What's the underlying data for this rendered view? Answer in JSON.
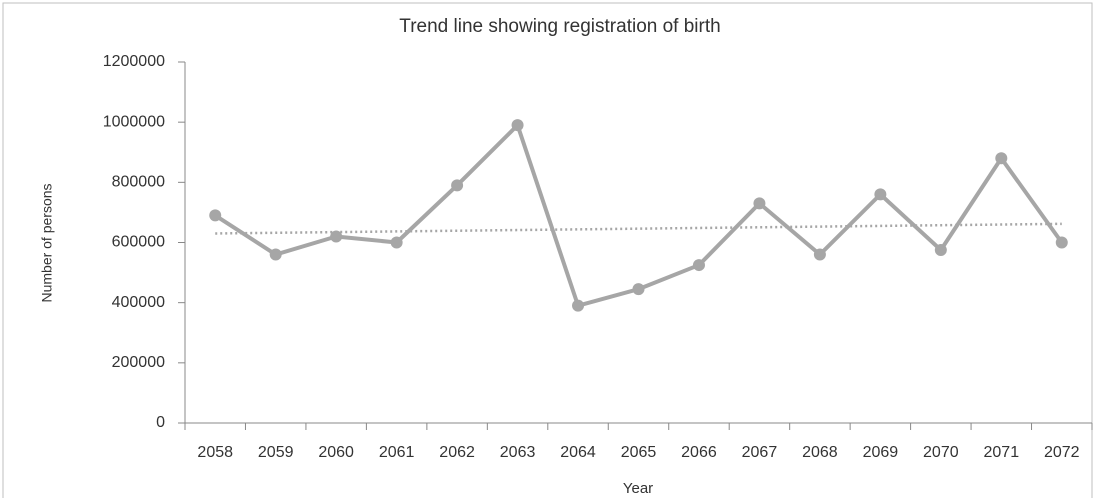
{
  "chart_data": {
    "type": "line",
    "title": "Trend line showing registration of birth",
    "xlabel": "Year",
    "ylabel": "Number of persons",
    "categories": [
      "2058",
      "2059",
      "2060",
      "2061",
      "2062",
      "2063",
      "2064",
      "2065",
      "2066",
      "2067",
      "2068",
      "2069",
      "2070",
      "2071",
      "2072"
    ],
    "series": [
      {
        "color": "#a6a6a6",
        "values": [
          690000,
          560000,
          620000,
          600000,
          790000,
          990000,
          390000,
          445000,
          525000,
          730000,
          560000,
          760000,
          575000,
          880000,
          600000
        ]
      }
    ],
    "trendline": {
      "color": "#a6a6a6",
      "values": [
        630000,
        662000
      ]
    },
    "ylim": [
      0,
      1200000
    ],
    "yticks": [
      0,
      200000,
      400000,
      600000,
      800000,
      1000000,
      1200000
    ],
    "grid": false
  }
}
